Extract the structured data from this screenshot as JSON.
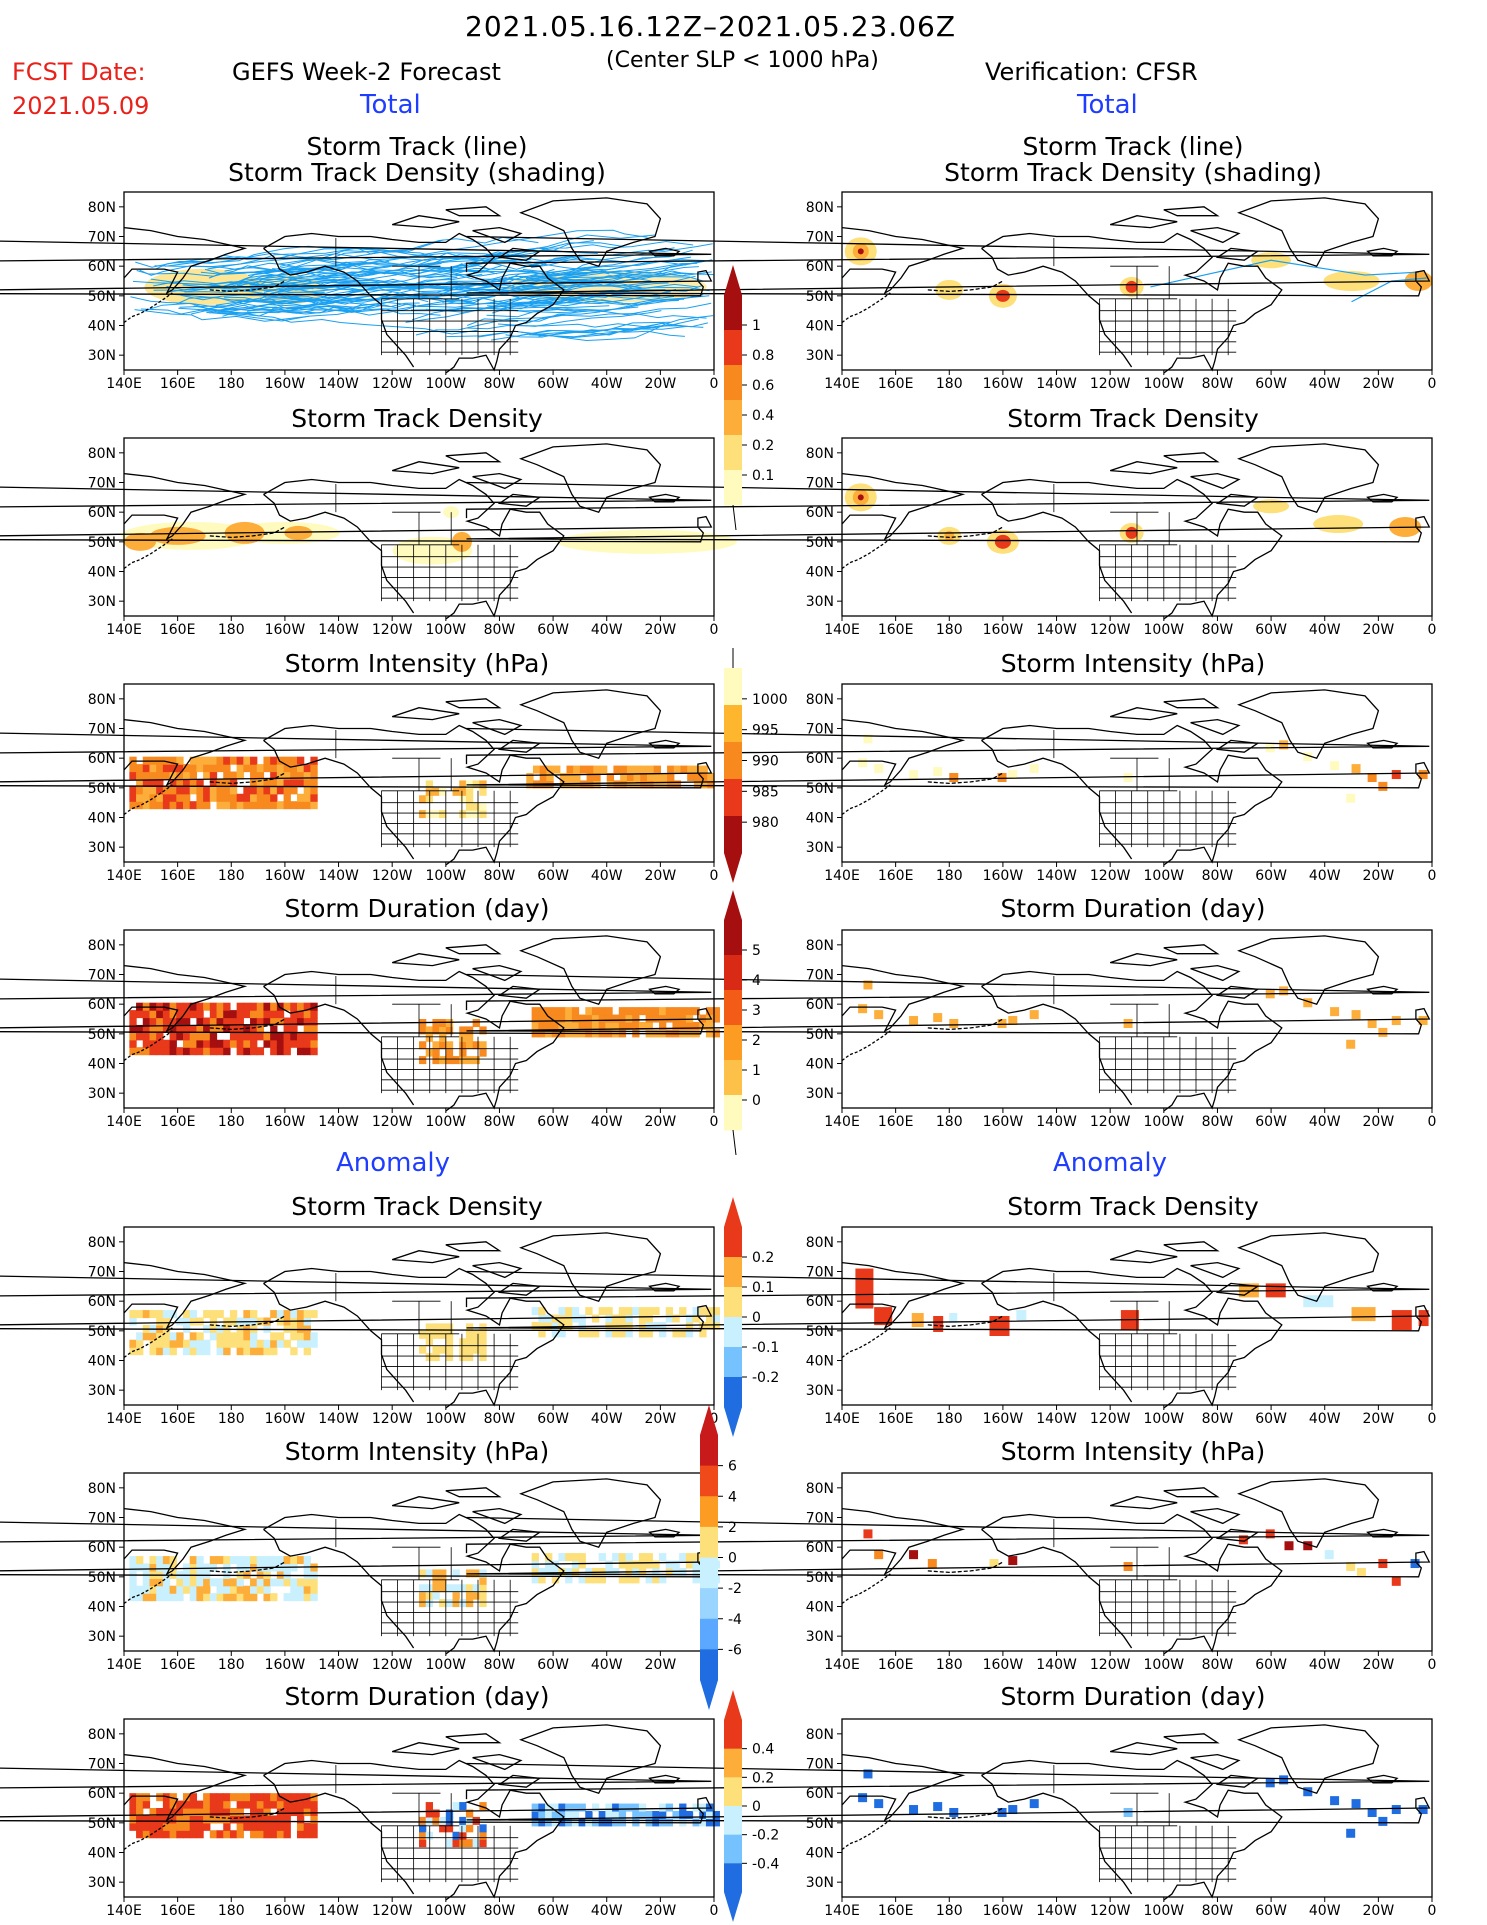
{
  "header": {
    "date_range": "2021.05.16.12Z–2021.05.23.06Z",
    "criterion": "(Center SLP < 1000 hPa)",
    "fcst_label": "FCST Date:",
    "fcst_date": "2021.05.09",
    "left_title": "GEFS Week-2 Forecast",
    "right_title": "Verification: CFSR"
  },
  "sections": {
    "total": "Total",
    "anomaly": "Anomaly"
  },
  "panel_titles": {
    "track_line": "Storm Track (line)",
    "track_shading": "Storm Track Density (shading)",
    "density": "Storm Track Density",
    "intensity": "Storm Intensity (hPa)",
    "duration": "Storm Duration (day)"
  },
  "axes": {
    "lon_ticks": [
      "140E",
      "160E",
      "180",
      "160W",
      "140W",
      "120W",
      "100W",
      "80W",
      "60W",
      "40W",
      "20W",
      "0"
    ],
    "lat_ticks": [
      "80N",
      "70N",
      "60N",
      "50N",
      "40N",
      "30N"
    ]
  },
  "colorbars": [
    {
      "id": "density_total",
      "labels": [
        "1",
        "0.8",
        "0.6",
        "0.4",
        "0.2",
        "0.1"
      ],
      "colors": [
        "#a50f0f",
        "#e8391a",
        "#f7891e",
        "#fdae3a",
        "#fde07a",
        "#fffbbf"
      ]
    },
    {
      "id": "intensity_total",
      "labels": [
        "1000",
        "995",
        "990",
        "985",
        "980"
      ],
      "colors": [
        "#fffbbf",
        "#fdb62e",
        "#f7891e",
        "#e8391a",
        "#a50f0f"
      ]
    },
    {
      "id": "duration_total",
      "labels": [
        "5",
        "4",
        "3",
        "2",
        "1",
        "0"
      ],
      "colors": [
        "#a50f0f",
        "#d82a14",
        "#f25c17",
        "#fd9c22",
        "#fdc14a",
        "#fffbbf"
      ]
    },
    {
      "id": "density_anom",
      "labels": [
        "0.2",
        "0.1",
        "0",
        "-0.1",
        "-0.2"
      ],
      "colors": [
        "#e8391a",
        "#fdae3a",
        "#fde07a",
        "#c8f0ff",
        "#76c2ff",
        "#1f6de0"
      ]
    },
    {
      "id": "intensity_anom",
      "labels": [
        "6",
        "4",
        "2",
        "0",
        "-2",
        "-4",
        "-6"
      ],
      "colors": [
        "#c81a1a",
        "#f04a1a",
        "#fd9c22",
        "#fde07a",
        "#c8f0ff",
        "#9ad5ff",
        "#5aa8ff",
        "#1f6de0"
      ]
    },
    {
      "id": "duration_anom",
      "labels": [
        "0.4",
        "0.2",
        "0",
        "-0.2",
        "-0.4"
      ],
      "colors": [
        "#e8391a",
        "#fdae3a",
        "#fde07a",
        "#c8f0ff",
        "#76c2ff",
        "#1f6de0"
      ]
    }
  ],
  "colors": {
    "track_line": "#1aa0f0",
    "section_blue": "#1f3dff",
    "fcst_red": "#e8211b"
  }
}
